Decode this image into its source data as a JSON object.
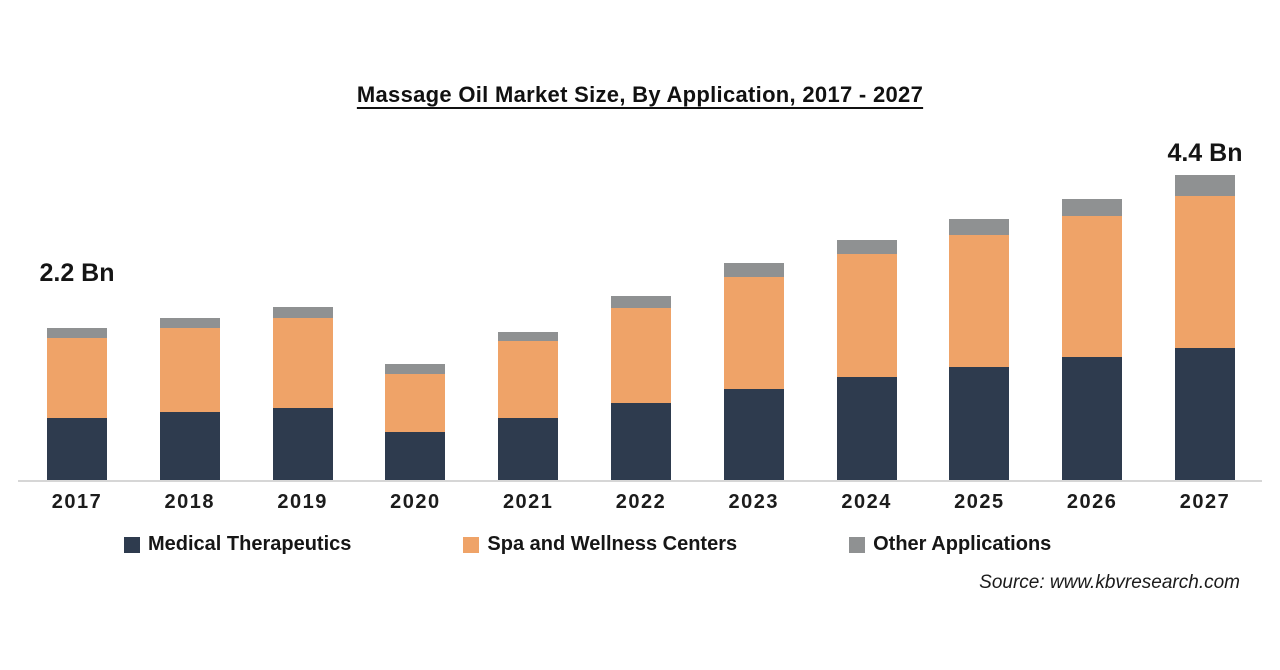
{
  "colors": {
    "medical_therapeutics": "#2e3b4e",
    "spa_wellness": "#efa368",
    "other_applications": "#8f9192",
    "axis_line": "#d6d6d6",
    "text": "#111111"
  },
  "annotations": [
    {
      "year": "2017",
      "label": "2.2 Bn"
    },
    {
      "year": "2027",
      "label": "4.4 Bn"
    }
  ],
  "source": "Source: www.kbvresearch.com",
  "chart_data": {
    "type": "bar",
    "stacked": true,
    "title": "Massage Oil Market Size, By Application, 2017 - 2027",
    "unit": "USD Bn",
    "categories": [
      "2017",
      "2018",
      "2019",
      "2020",
      "2021",
      "2022",
      "2023",
      "2024",
      "2025",
      "2026",
      "2027"
    ],
    "series": [
      {
        "name": "Medical Therapeutics",
        "color": "#2e3b4e",
        "values": [
          0.9,
          0.98,
          1.04,
          0.69,
          0.89,
          1.11,
          1.31,
          1.48,
          1.63,
          1.77,
          1.91
        ]
      },
      {
        "name": "Spa and Wellness Centers",
        "color": "#efa368",
        "values": [
          1.16,
          1.21,
          1.3,
          0.84,
          1.11,
          1.37,
          1.61,
          1.78,
          1.9,
          2.04,
          2.19
        ]
      },
      {
        "name": "Other Applications",
        "color": "#8f9192",
        "values": [
          0.14,
          0.15,
          0.16,
          0.14,
          0.13,
          0.17,
          0.2,
          0.2,
          0.23,
          0.24,
          0.3
        ]
      }
    ],
    "totals": [
      2.2,
      2.34,
      2.5,
      1.67,
      2.13,
      2.65,
      3.12,
      3.46,
      3.76,
      4.05,
      4.4
    ],
    "ylim": [
      0,
      5.2
    ],
    "grid": false,
    "legend_position": "bottom",
    "xlabel": "",
    "ylabel": ""
  }
}
